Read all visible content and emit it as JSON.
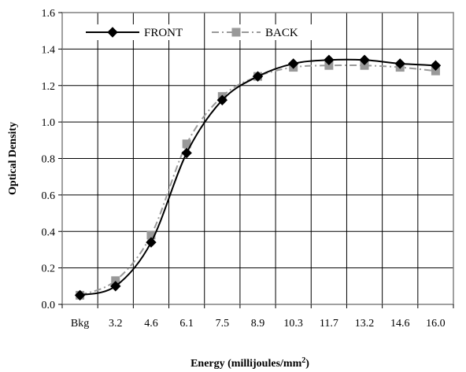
{
  "chart_data": {
    "type": "line",
    "title": "",
    "xlabel": "Energy (millijoules/mm",
    "xlabel_superscript": "2",
    "xlabel_suffix": ")",
    "ylabel": "Optical Density",
    "categories": [
      "Bkg",
      "3.2",
      "4.6",
      "6.1",
      "7.5",
      "8.9",
      "10.3",
      "11.7",
      "13.2",
      "14.6",
      "16.0"
    ],
    "ylim": [
      0,
      1.6
    ],
    "yticks": [
      0.0,
      0.2,
      0.4,
      0.6,
      0.8,
      1.0,
      1.2,
      1.4,
      1.6
    ],
    "ytick_labels": [
      "0.0",
      "0.2",
      "0.4",
      "0.6",
      "0.8",
      "1.0",
      "1.2",
      "1.4",
      "1.6"
    ],
    "grid": true,
    "legend_position": "top-left",
    "series": [
      {
        "name": "FRONT",
        "values": [
          0.05,
          0.1,
          0.34,
          0.83,
          1.12,
          1.25,
          1.32,
          1.34,
          1.34,
          1.32,
          1.31
        ],
        "color": "#000000",
        "marker": "diamond",
        "line_style": "solid"
      },
      {
        "name": "BACK",
        "values": [
          0.05,
          0.13,
          0.38,
          0.88,
          1.14,
          1.25,
          1.3,
          1.31,
          1.31,
          1.3,
          1.28
        ],
        "color": "#999999",
        "marker": "square",
        "line_style": "dash-dot"
      }
    ]
  }
}
